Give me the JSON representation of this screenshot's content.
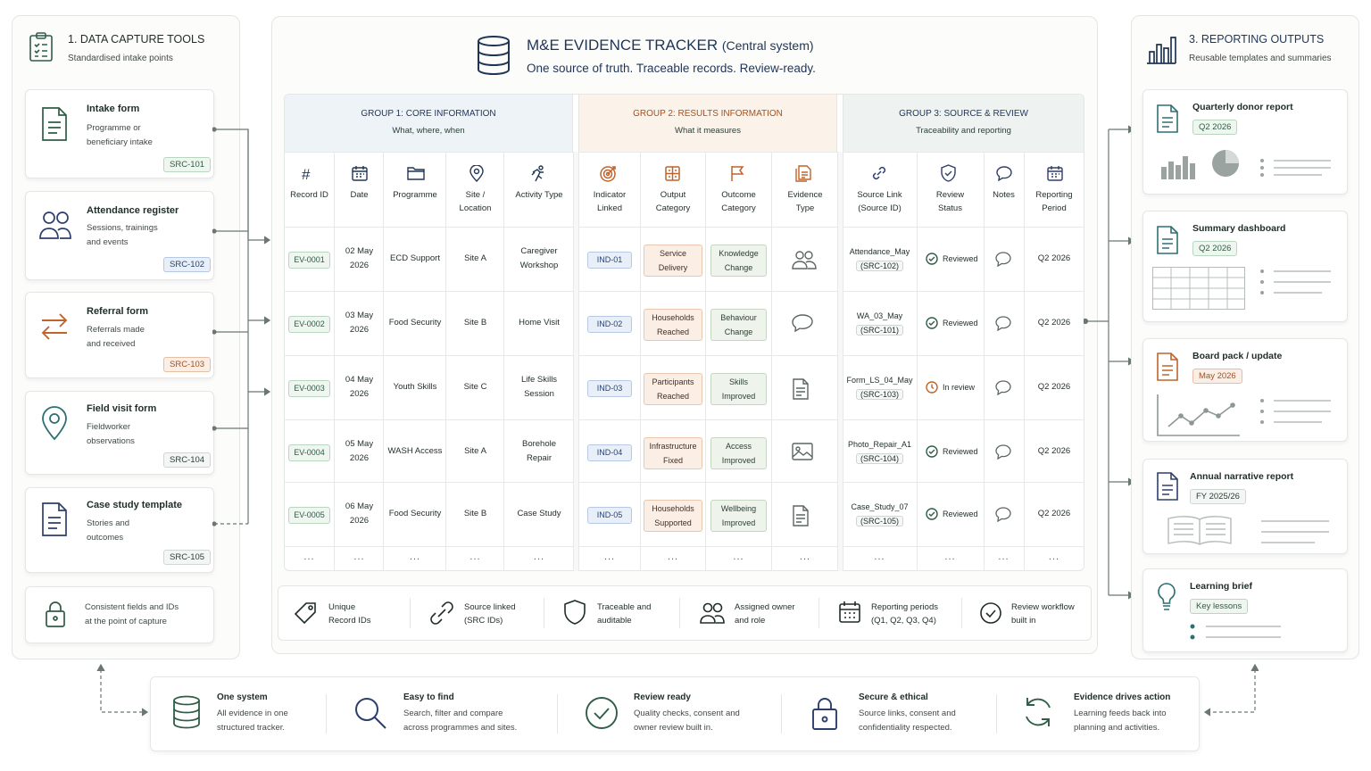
{
  "left": {
    "title": "1. DATA CAPTURE TOOLS",
    "subtitle": "Standardised intake points",
    "tools": [
      {
        "title": "Intake form",
        "desc1": "Programme or",
        "desc2": "beneficiary intake",
        "code": "SRC-101"
      },
      {
        "title": "Attendance register",
        "desc1": "Sessions, trainings",
        "desc2": "and events",
        "code": "SRC-102"
      },
      {
        "title": "Referral form",
        "desc1": "Referrals made",
        "desc2": "and received",
        "code": "SRC-103"
      },
      {
        "title": "Field visit form",
        "desc1": "Fieldworker",
        "desc2": "observations",
        "code": "SRC-104"
      },
      {
        "title": "Case study template",
        "desc1": "Stories and",
        "desc2": "outcomes",
        "code": "SRC-105"
      }
    ],
    "footer1": "Consistent fields and IDs",
    "footer2": "at the point of capture"
  },
  "center": {
    "title": "M&E EVIDENCE TRACKER",
    "title_suffix": "(Central system)",
    "subtitle": "One source of truth. Traceable records. Review-ready.",
    "groups": [
      {
        "title": "GROUP 1: CORE INFORMATION",
        "sub": "What, where, when"
      },
      {
        "title": "GROUP 2: RESULTS INFORMATION",
        "sub": "What it measures"
      },
      {
        "title": "GROUP 3: SOURCE & REVIEW",
        "sub": "Traceability and reporting"
      }
    ],
    "columns": [
      [
        "Record ID",
        ""
      ],
      [
        "Date",
        ""
      ],
      [
        "Programme",
        ""
      ],
      [
        "Site /",
        "Location"
      ],
      [
        "Activity Type",
        ""
      ],
      [
        "Indicator",
        "Linked"
      ],
      [
        "Output",
        "Category"
      ],
      [
        "Outcome",
        "Category"
      ],
      [
        "Evidence",
        "Type"
      ],
      [
        "Source Link",
        "(Source ID)"
      ],
      [
        "Review",
        "Status"
      ],
      [
        "Notes",
        ""
      ],
      [
        "Reporting",
        "Period"
      ]
    ],
    "rows": [
      {
        "id": "EV-0001",
        "date1": "02 May",
        "date2": "2026",
        "programme": "ECD Support",
        "site": "Site A",
        "act1": "Caregiver",
        "act2": "Workshop",
        "ind": "IND-01",
        "out1": "Service",
        "out2": "Delivery",
        "oc1": "Knowledge",
        "oc2": "Change",
        "src1": "Attendance_May",
        "src2": "(SRC-102)",
        "status": "Reviewed",
        "period": "Q2 2026"
      },
      {
        "id": "EV-0002",
        "date1": "03 May",
        "date2": "2026",
        "programme": "Food Security",
        "site": "Site B",
        "act1": "Home Visit",
        "act2": "",
        "ind": "IND-02",
        "out1": "Households",
        "out2": "Reached",
        "oc1": "Behaviour",
        "oc2": "Change",
        "src1": "WA_03_May",
        "src2": "(SRC-101)",
        "status": "Reviewed",
        "period": "Q2 2026"
      },
      {
        "id": "EV-0003",
        "date1": "04 May",
        "date2": "2026",
        "programme": "Youth Skills",
        "site": "Site C",
        "act1": "Life Skills",
        "act2": "Session",
        "ind": "IND-03",
        "out1": "Participants",
        "out2": "Reached",
        "oc1": "Skills",
        "oc2": "Improved",
        "src1": "Form_LS_04_May",
        "src2": "(SRC-103)",
        "status": "In review",
        "period": "Q2 2026"
      },
      {
        "id": "EV-0004",
        "date1": "05 May",
        "date2": "2026",
        "programme": "WASH Access",
        "site": "Site A",
        "act1": "Borehole",
        "act2": "Repair",
        "ind": "IND-04",
        "out1": "Infrastructure",
        "out2": "Fixed",
        "oc1": "Access",
        "oc2": "Improved",
        "src1": "Photo_Repair_A1",
        "src2": "(SRC-104)",
        "status": "Reviewed",
        "period": "Q2 2026"
      },
      {
        "id": "EV-0005",
        "date1": "06 May",
        "date2": "2026",
        "programme": "Food Security",
        "site": "Site B",
        "act1": "Case Study",
        "act2": "",
        "ind": "IND-05",
        "out1": "Households",
        "out2": "Supported",
        "oc1": "Wellbeing",
        "oc2": "Improved",
        "src1": "Case_Study_07",
        "src2": "(SRC-105)",
        "status": "Reviewed",
        "period": "Q2 2026"
      }
    ],
    "ellipsis": "...",
    "features": [
      {
        "l1": "Unique",
        "l2": "Record IDs"
      },
      {
        "l1": "Source linked",
        "l2": "(SRC IDs)"
      },
      {
        "l1": "Traceable and",
        "l2": "auditable"
      },
      {
        "l1": "Assigned owner",
        "l2": "and role"
      },
      {
        "l1": "Reporting periods",
        "l2": "(Q1, Q2, Q3, Q4)"
      },
      {
        "l1": "Review workflow",
        "l2": "built in"
      }
    ]
  },
  "right": {
    "title": "3. REPORTING OUTPUTS",
    "subtitle": "Reusable templates and summaries",
    "outputs": [
      {
        "title": "Quarterly donor report",
        "badge": "Q2 2026"
      },
      {
        "title": "Summary dashboard",
        "badge": "Q2 2026"
      },
      {
        "title": "Board pack / update",
        "badge": "May 2026"
      },
      {
        "title": "Annual narrative report",
        "badge": "FY 2025/26"
      },
      {
        "title": "Learning brief",
        "badge": "Key lessons"
      }
    ]
  },
  "bottom": [
    {
      "title": "One system",
      "l1": "All evidence in one",
      "l2": "structured tracker."
    },
    {
      "title": "Easy to find",
      "l1": "Search, filter and compare",
      "l2": "across programmes and sites."
    },
    {
      "title": "Review ready",
      "l1": "Quality checks, consent and",
      "l2": "owner review built in."
    },
    {
      "title": "Secure & ethical",
      "l1": "Source links, consent and",
      "l2": "confidentiality respected."
    },
    {
      "title": "Evidence drives action",
      "l1": "Learning feeds back into",
      "l2": "planning and activities."
    }
  ]
}
